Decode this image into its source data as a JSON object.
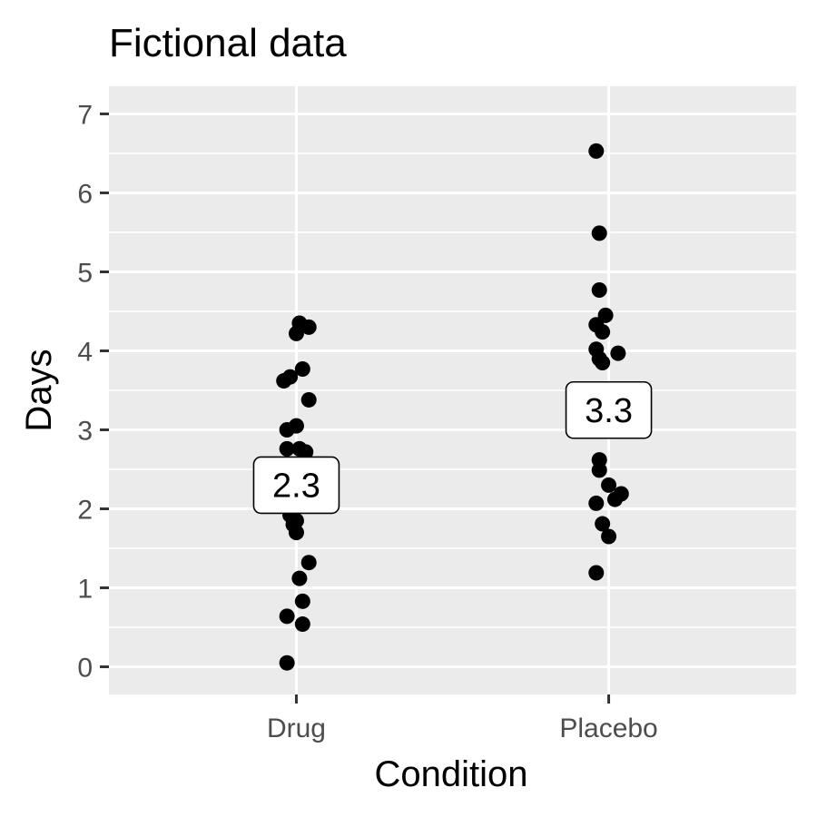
{
  "chart_data": {
    "type": "scatter",
    "title": "Fictional data",
    "xlabel": "Condition",
    "ylabel": "Days",
    "categories": [
      "Drug",
      "Placebo"
    ],
    "ylim": [
      -0.35,
      7.35
    ],
    "yticks": [
      0,
      1,
      2,
      3,
      4,
      5,
      6,
      7
    ],
    "grid": true,
    "legend": "none",
    "series": [
      {
        "name": "Drug",
        "points": [
          {
            "x": 1.01,
            "y": 4.35
          },
          {
            "x": 1.04,
            "y": 4.3
          },
          {
            "x": 1.0,
            "y": 4.22
          },
          {
            "x": 1.02,
            "y": 3.77
          },
          {
            "x": 0.98,
            "y": 3.67
          },
          {
            "x": 0.96,
            "y": 3.62
          },
          {
            "x": 1.04,
            "y": 3.38
          },
          {
            "x": 1.0,
            "y": 3.05
          },
          {
            "x": 0.97,
            "y": 3.0
          },
          {
            "x": 1.01,
            "y": 2.76
          },
          {
            "x": 0.97,
            "y": 2.76
          },
          {
            "x": 1.03,
            "y": 2.72
          },
          {
            "x": 0.98,
            "y": 1.92
          },
          {
            "x": 1.0,
            "y": 1.85
          },
          {
            "x": 0.99,
            "y": 1.8
          },
          {
            "x": 1.0,
            "y": 1.7
          },
          {
            "x": 1.04,
            "y": 1.32
          },
          {
            "x": 1.01,
            "y": 1.12
          },
          {
            "x": 1.02,
            "y": 0.83
          },
          {
            "x": 0.97,
            "y": 0.64
          },
          {
            "x": 1.02,
            "y": 0.54
          },
          {
            "x": 0.97,
            "y": 0.05
          }
        ]
      },
      {
        "name": "Placebo",
        "points": [
          {
            "x": 1.96,
            "y": 6.53
          },
          {
            "x": 1.97,
            "y": 5.49
          },
          {
            "x": 1.97,
            "y": 4.77
          },
          {
            "x": 1.99,
            "y": 4.45
          },
          {
            "x": 1.96,
            "y": 4.33
          },
          {
            "x": 1.98,
            "y": 4.24
          },
          {
            "x": 1.96,
            "y": 4.02
          },
          {
            "x": 2.03,
            "y": 3.97
          },
          {
            "x": 1.97,
            "y": 3.9
          },
          {
            "x": 1.98,
            "y": 3.85
          },
          {
            "x": 1.97,
            "y": 2.62
          },
          {
            "x": 1.97,
            "y": 2.49
          },
          {
            "x": 2.0,
            "y": 2.3
          },
          {
            "x": 2.04,
            "y": 2.19
          },
          {
            "x": 2.02,
            "y": 2.12
          },
          {
            "x": 1.96,
            "y": 2.07
          },
          {
            "x": 1.98,
            "y": 1.81
          },
          {
            "x": 2.0,
            "y": 1.65
          },
          {
            "x": 1.96,
            "y": 1.19
          }
        ]
      }
    ],
    "annotations": [
      {
        "category": "Drug",
        "y": 2.3,
        "text": "2.3"
      },
      {
        "category": "Placebo",
        "y": 3.25,
        "text": "3.3"
      }
    ]
  }
}
